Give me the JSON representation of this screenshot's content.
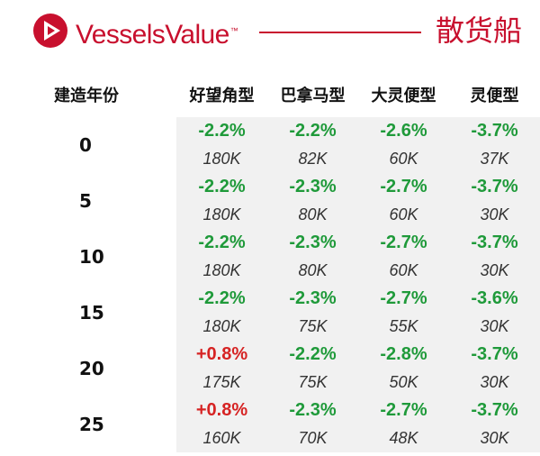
{
  "header": {
    "brand": "VesselsValue",
    "trademark": "™",
    "ship_type": "散货船",
    "brand_color": "#c8102e"
  },
  "table": {
    "age_header": "建造年份",
    "columns": [
      "好望角型",
      "巴拿马型",
      "大灵便型",
      "灵便型"
    ],
    "rows": [
      {
        "age": "0",
        "pct": [
          "-2.2%",
          "-2.2%",
          "-2.6%",
          "-3.7%"
        ],
        "val": [
          "180K",
          "82K",
          "60K",
          "37K"
        ]
      },
      {
        "age": "5",
        "pct": [
          "-2.2%",
          "-2.3%",
          "-2.7%",
          "-3.7%"
        ],
        "val": [
          "180K",
          "80K",
          "60K",
          "30K"
        ]
      },
      {
        "age": "10",
        "pct": [
          "-2.2%",
          "-2.3%",
          "-2.7%",
          "-3.7%"
        ],
        "val": [
          "180K",
          "80K",
          "60K",
          "30K"
        ]
      },
      {
        "age": "15",
        "pct": [
          "-2.2%",
          "-2.3%",
          "-2.7%",
          "-3.6%"
        ],
        "val": [
          "180K",
          "75K",
          "55K",
          "30K"
        ]
      },
      {
        "age": "20",
        "pct": [
          "+0.8%",
          "-2.2%",
          "-2.8%",
          "-3.7%"
        ],
        "val": [
          "175K",
          "75K",
          "50K",
          "30K"
        ]
      },
      {
        "age": "25",
        "pct": [
          "+0.8%",
          "-2.3%",
          "-2.7%",
          "-3.7%"
        ],
        "val": [
          "160K",
          "70K",
          "48K",
          "30K"
        ]
      }
    ],
    "colors": {
      "negative": "#1f9a3a",
      "positive": "#d62323"
    }
  }
}
